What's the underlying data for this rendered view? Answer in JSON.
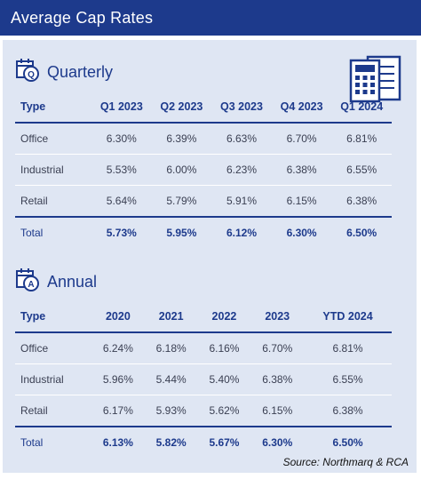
{
  "page": {
    "title": "Average Cap Rates",
    "source": "Source: Northmarq & RCA"
  },
  "colors": {
    "brand_navy": "#1d3a8c",
    "panel_bg": "#dfe6f3"
  },
  "quarterly": {
    "heading": "Quarterly",
    "icon_letter": "Q",
    "columns": [
      "Type",
      "Q1 2023",
      "Q2 2023",
      "Q3 2023",
      "Q4 2023",
      "Q1 2024"
    ],
    "rows": [
      [
        "Office",
        "6.30%",
        "6.39%",
        "6.63%",
        "6.70%",
        "6.81%"
      ],
      [
        "Industrial",
        "5.53%",
        "6.00%",
        "6.23%",
        "6.38%",
        "6.55%"
      ],
      [
        "Retail",
        "5.64%",
        "5.79%",
        "5.91%",
        "6.15%",
        "6.38%"
      ]
    ],
    "total": [
      "Total",
      "5.73%",
      "5.95%",
      "6.12%",
      "6.30%",
      "6.50%"
    ]
  },
  "annual": {
    "heading": "Annual",
    "icon_letter": "A",
    "columns": [
      "Type",
      "2020",
      "2021",
      "2022",
      "2023",
      "YTD 2024"
    ],
    "rows": [
      [
        "Office",
        "6.24%",
        "6.18%",
        "6.16%",
        "6.70%",
        "6.81%"
      ],
      [
        "Industrial",
        "5.96%",
        "5.44%",
        "5.40%",
        "6.38%",
        "6.55%"
      ],
      [
        "Retail",
        "6.17%",
        "5.93%",
        "5.62%",
        "6.15%",
        "6.38%"
      ]
    ],
    "total": [
      "Total",
      "6.13%",
      "5.82%",
      "5.67%",
      "6.30%",
      "6.50%"
    ]
  }
}
